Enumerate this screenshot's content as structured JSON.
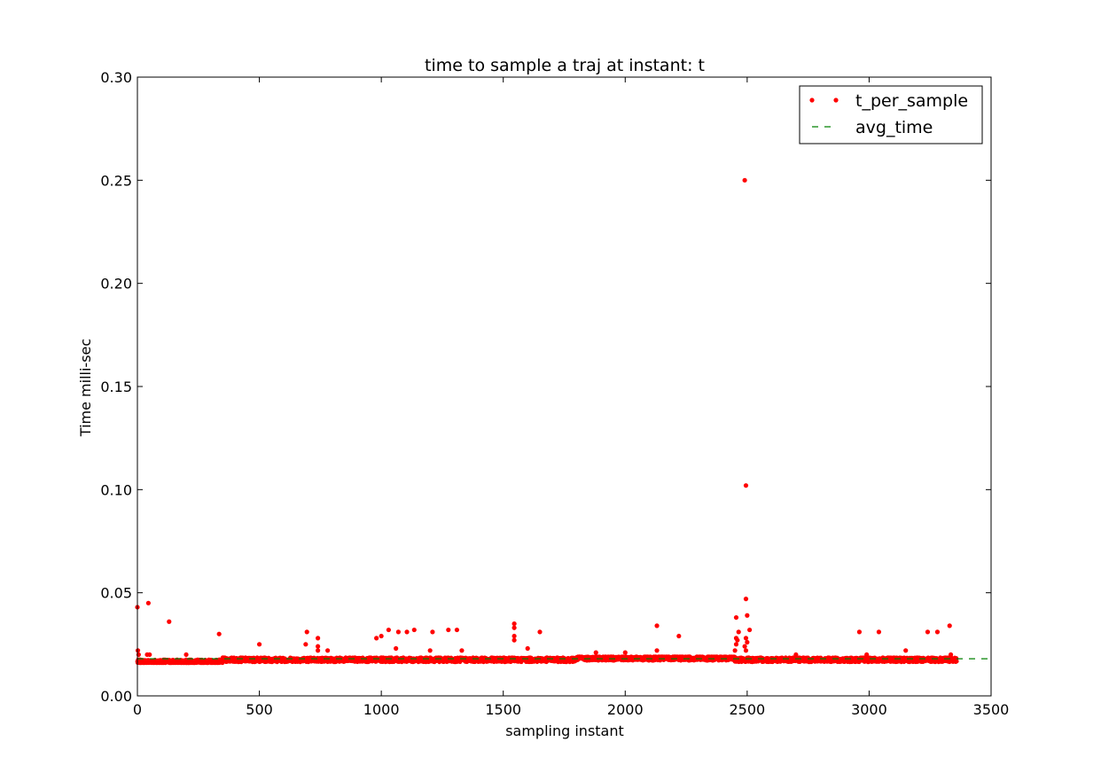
{
  "chart_data": {
    "type": "scatter",
    "title": "time to sample a traj at instant: t",
    "xlabel": "sampling instant",
    "ylabel": "Time milli-sec",
    "xlim": [
      0,
      3500
    ],
    "ylim": [
      0,
      0.3
    ],
    "x_ticks": [
      "0",
      "500",
      "1000",
      "1500",
      "2000",
      "2500",
      "3000",
      "3500"
    ],
    "y_ticks": [
      "0.00",
      "0.05",
      "0.10",
      "0.15",
      "0.20",
      "0.25",
      "0.30"
    ],
    "grid": false,
    "legend_position": "top-right",
    "series": [
      {
        "name": "t_per_sample",
        "style": "red dots",
        "color": "#ff0000",
        "n_samples": 3360,
        "baseline_range": [
          0.016,
          0.019
        ],
        "outliers": [
          {
            "x": 0,
            "y": 0.043
          },
          {
            "x": 2,
            "y": 0.022
          },
          {
            "x": 5,
            "y": 0.02
          },
          {
            "x": 45,
            "y": 0.045
          },
          {
            "x": 40,
            "y": 0.02
          },
          {
            "x": 50,
            "y": 0.02
          },
          {
            "x": 130,
            "y": 0.036
          },
          {
            "x": 200,
            "y": 0.02
          },
          {
            "x": 335,
            "y": 0.03
          },
          {
            "x": 500,
            "y": 0.025
          },
          {
            "x": 695,
            "y": 0.031
          },
          {
            "x": 690,
            "y": 0.025
          },
          {
            "x": 740,
            "y": 0.028
          },
          {
            "x": 740,
            "y": 0.024
          },
          {
            "x": 740,
            "y": 0.022
          },
          {
            "x": 780,
            "y": 0.022
          },
          {
            "x": 980,
            "y": 0.028
          },
          {
            "x": 1000,
            "y": 0.029
          },
          {
            "x": 1030,
            "y": 0.032
          },
          {
            "x": 1070,
            "y": 0.031
          },
          {
            "x": 1105,
            "y": 0.031
          },
          {
            "x": 1135,
            "y": 0.032
          },
          {
            "x": 1060,
            "y": 0.023
          },
          {
            "x": 1200,
            "y": 0.022
          },
          {
            "x": 1210,
            "y": 0.031
          },
          {
            "x": 1275,
            "y": 0.032
          },
          {
            "x": 1310,
            "y": 0.032
          },
          {
            "x": 1330,
            "y": 0.022
          },
          {
            "x": 1545,
            "y": 0.035
          },
          {
            "x": 1545,
            "y": 0.033
          },
          {
            "x": 1545,
            "y": 0.029
          },
          {
            "x": 1545,
            "y": 0.027
          },
          {
            "x": 1600,
            "y": 0.023
          },
          {
            "x": 1650,
            "y": 0.031
          },
          {
            "x": 2130,
            "y": 0.034
          },
          {
            "x": 2130,
            "y": 0.022
          },
          {
            "x": 2220,
            "y": 0.029
          },
          {
            "x": 2455,
            "y": 0.038
          },
          {
            "x": 2465,
            "y": 0.031
          },
          {
            "x": 2455,
            "y": 0.028
          },
          {
            "x": 2460,
            "y": 0.027
          },
          {
            "x": 2455,
            "y": 0.025
          },
          {
            "x": 2450,
            "y": 0.022
          },
          {
            "x": 2490,
            "y": 0.25
          },
          {
            "x": 2495,
            "y": 0.102
          },
          {
            "x": 2495,
            "y": 0.047
          },
          {
            "x": 2500,
            "y": 0.039
          },
          {
            "x": 2510,
            "y": 0.032
          },
          {
            "x": 2495,
            "y": 0.028
          },
          {
            "x": 2500,
            "y": 0.026
          },
          {
            "x": 2490,
            "y": 0.024
          },
          {
            "x": 2495,
            "y": 0.022
          },
          {
            "x": 2960,
            "y": 0.031
          },
          {
            "x": 3040,
            "y": 0.031
          },
          {
            "x": 3150,
            "y": 0.022
          },
          {
            "x": 3240,
            "y": 0.031
          },
          {
            "x": 3280,
            "y": 0.031
          },
          {
            "x": 3330,
            "y": 0.034
          },
          {
            "x": 3335,
            "y": 0.02
          },
          {
            "x": 2990,
            "y": 0.02
          },
          {
            "x": 2700,
            "y": 0.02
          },
          {
            "x": 1880,
            "y": 0.021
          },
          {
            "x": 2000,
            "y": 0.021
          }
        ]
      },
      {
        "name": "avg_time",
        "style": "green dashed",
        "color": "#008000",
        "x": [
          0,
          3500
        ],
        "y": [
          0.018,
          0.018
        ]
      }
    ]
  }
}
